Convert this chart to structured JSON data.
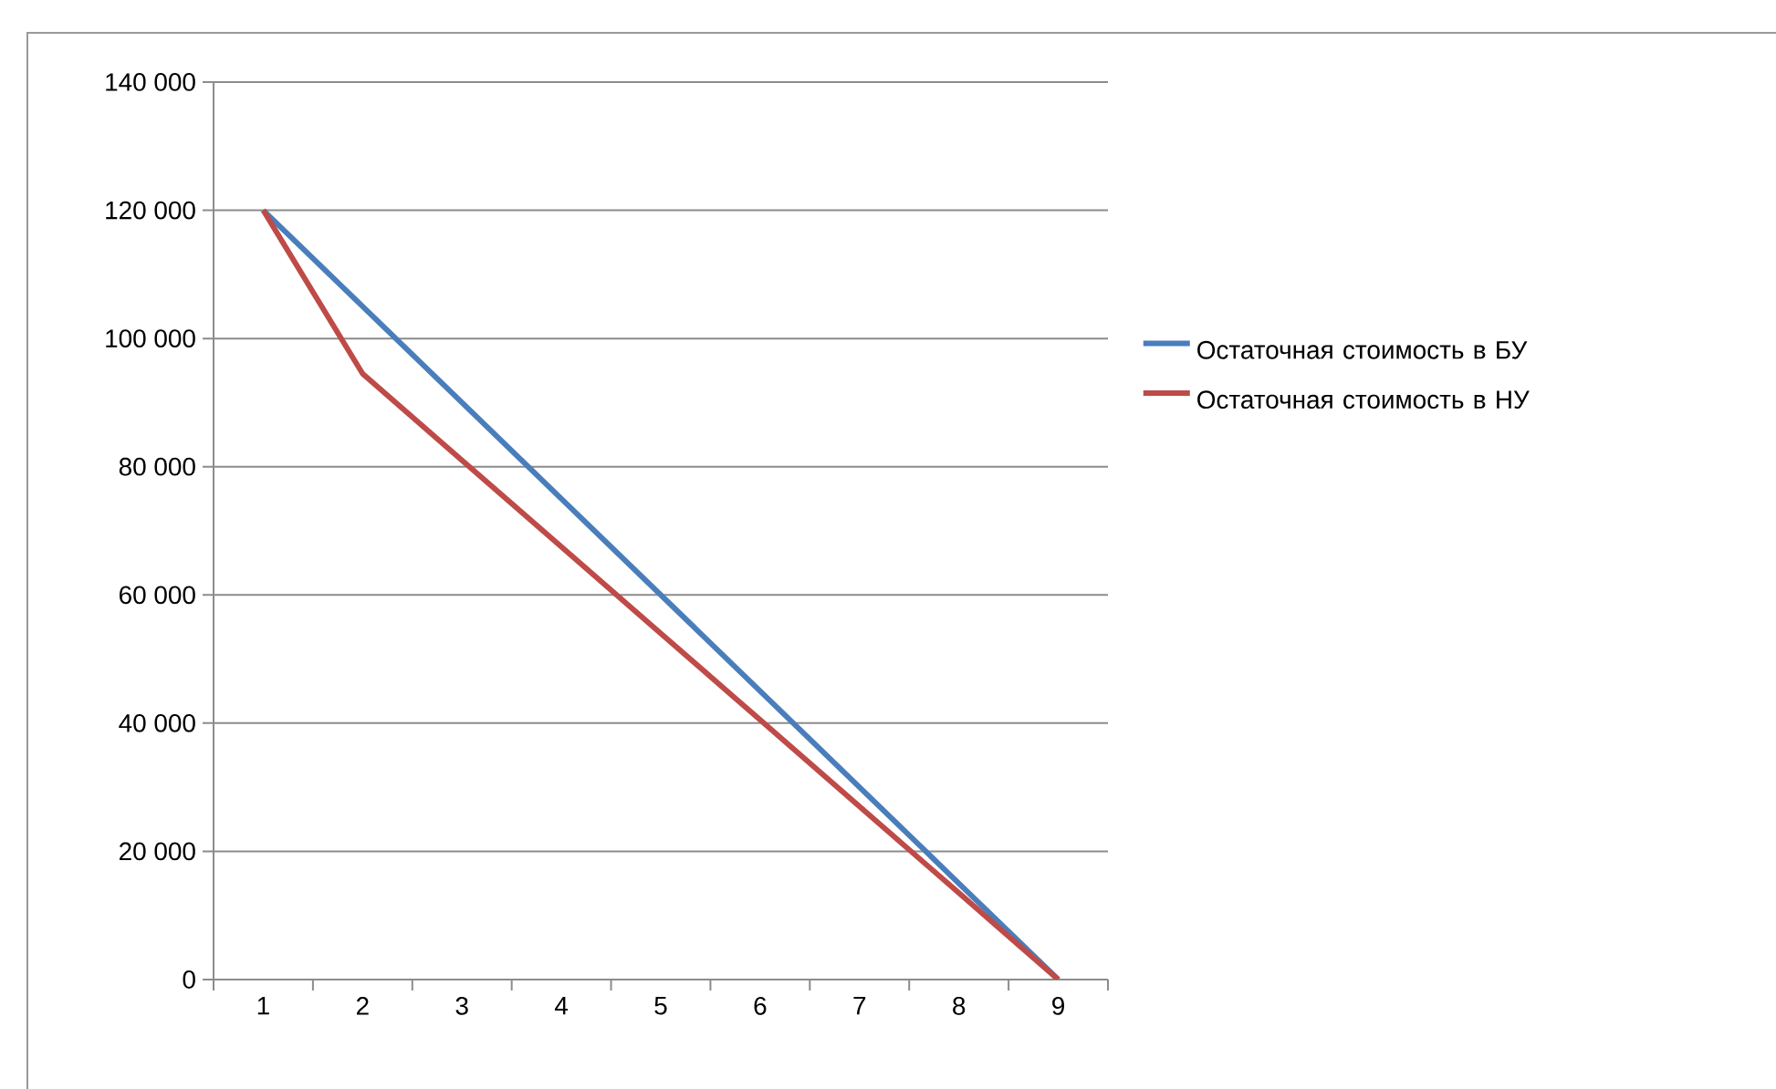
{
  "chart_data": {
    "type": "line",
    "categories": [
      "1",
      "2",
      "3",
      "4",
      "5",
      "6",
      "7",
      "8",
      "9"
    ],
    "series": [
      {
        "name": "Остаточная стоимость в БУ",
        "color": "#4a7ebb",
        "values": [
          120000,
          105000,
          90000,
          75000,
          60000,
          45000,
          30000,
          15000,
          0
        ]
      },
      {
        "name": "Остаточная стоимость в НУ",
        "color": "#be4b48",
        "values": [
          120000,
          94500,
          81000,
          67500,
          54000,
          40500,
          27000,
          13500,
          0
        ]
      }
    ],
    "ylim": [
      0,
      140000
    ],
    "yticks": [
      {
        "value": 0,
        "label": "0"
      },
      {
        "value": 20000,
        "label": "20 000"
      },
      {
        "value": 40000,
        "label": "40 000"
      },
      {
        "value": 60000,
        "label": "60 000"
      },
      {
        "value": 80000,
        "label": "80 000"
      },
      {
        "value": 100000,
        "label": "100 000"
      },
      {
        "value": 120000,
        "label": "120 000"
      },
      {
        "value": 140000,
        "label": "140 000"
      }
    ],
    "grid": "y",
    "legend": "right",
    "marker": "none",
    "line_style": "solid"
  }
}
